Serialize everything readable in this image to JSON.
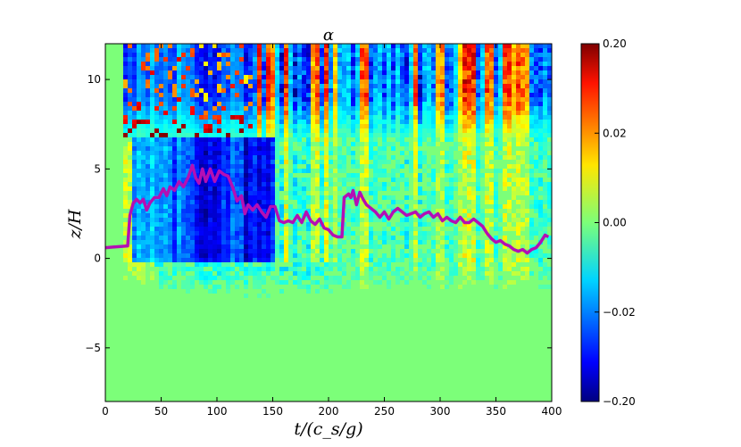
{
  "chart_data": {
    "type": "heatmap",
    "title": "α",
    "xlabel": "t/(c_s/g)",
    "ylabel": "z/H",
    "xlim": [
      0,
      400
    ],
    "ylim": [
      -8,
      12
    ],
    "xticks": [
      0,
      50,
      100,
      150,
      200,
      250,
      300,
      350,
      400
    ],
    "yticks": [
      -5,
      0,
      5,
      10
    ],
    "ytick_labels": [
      "−5",
      "0",
      "5",
      "10"
    ],
    "colormap": "jet",
    "colorbar": {
      "tick_labels": [
        "0.20",
        "0.02",
        "0.00",
        "−0.02",
        "−0.20"
      ],
      "values": [
        0.2,
        0.02,
        0.0,
        -0.02,
        -0.2
      ],
      "placement": "right"
    },
    "grid": false,
    "series": [
      {
        "type": "line",
        "color": "#b40fb4",
        "x": [
          0,
          20,
          22,
          25,
          28,
          31,
          34,
          37,
          40,
          44,
          48,
          52,
          55,
          58,
          62,
          66,
          70,
          74,
          78,
          81,
          84,
          87,
          90,
          94,
          98,
          102,
          106,
          110,
          114,
          118,
          122,
          125,
          128,
          132,
          136,
          140,
          144,
          148,
          152,
          156,
          160,
          164,
          168,
          172,
          176,
          180,
          184,
          188,
          192,
          196,
          200,
          204,
          208,
          212,
          214,
          216,
          218,
          220,
          222,
          225,
          228,
          231,
          234,
          238,
          242,
          246,
          250,
          254,
          258,
          262,
          266,
          270,
          274,
          278,
          282,
          286,
          290,
          294,
          298,
          302,
          306,
          310,
          314,
          318,
          322,
          326,
          330,
          334,
          338,
          342,
          346,
          350,
          354,
          358,
          362,
          366,
          370,
          374,
          378,
          382,
          386,
          390,
          394,
          397
        ],
        "y": [
          0.6,
          0.7,
          2.4,
          3.1,
          3.3,
          3.1,
          3.3,
          2.7,
          3.1,
          3.4,
          3.4,
          3.9,
          3.5,
          4.0,
          3.8,
          4.3,
          4.0,
          4.5,
          5.2,
          4.5,
          4.2,
          5.0,
          4.3,
          5.0,
          4.3,
          4.9,
          4.7,
          4.6,
          4.0,
          3.2,
          3.5,
          2.5,
          3.0,
          2.7,
          3.0,
          2.6,
          2.3,
          2.9,
          2.9,
          2.1,
          2.0,
          2.1,
          2.0,
          2.4,
          2.0,
          2.6,
          2.1,
          1.9,
          2.2,
          1.7,
          1.6,
          1.3,
          1.2,
          1.2,
          3.4,
          3.5,
          3.6,
          3.4,
          3.8,
          3.0,
          3.7,
          3.3,
          3.0,
          2.8,
          2.6,
          2.3,
          2.6,
          2.2,
          2.6,
          2.8,
          2.6,
          2.4,
          2.5,
          2.6,
          2.3,
          2.5,
          2.6,
          2.3,
          2.5,
          2.1,
          2.3,
          2.1,
          2.0,
          2.3,
          2.0,
          2.0,
          2.2,
          2.0,
          1.8,
          1.4,
          1.1,
          0.9,
          1.0,
          0.8,
          0.7,
          0.5,
          0.4,
          0.5,
          0.3,
          0.5,
          0.6,
          0.9,
          1.3,
          1.2
        ]
      }
    ],
    "annotations": []
  }
}
